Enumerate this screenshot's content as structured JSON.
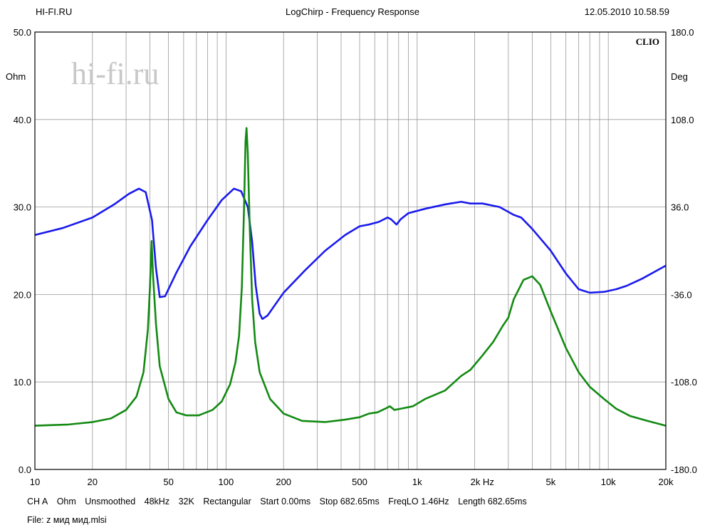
{
  "header": {
    "left": "HI-FI.RU",
    "center": "LogChirp - Frequency Response",
    "right": "12.05.2010 10.58.59"
  },
  "watermark": "hi-fi.ru",
  "brand": "CLIO",
  "left_axis": {
    "unit": "Ohm",
    "ticks": [
      "50.0",
      "40.0",
      "30.0",
      "20.0",
      "10.0",
      "0.0"
    ]
  },
  "right_axis": {
    "unit": "Deg",
    "ticks": [
      "180.0",
      "108.0",
      "36.0",
      "-36.0",
      "-108.0",
      "-180.0"
    ]
  },
  "x_axis": {
    "labels": [
      "10",
      "20",
      "50",
      "100",
      "200",
      "500",
      "1k",
      "2k Hz",
      "5k",
      "10k",
      "20k"
    ]
  },
  "params": [
    "CH A",
    "Ohm",
    "Unsmoothed",
    "48kHz",
    "32K",
    "Rectangular",
    "Start 0.00ms",
    "Stop 682.65ms",
    "FreqLO 1.46Hz",
    "Length 682.65ms"
  ],
  "file": "File: z мид мид.mlsi",
  "colors": {
    "impedance": "#1a1aee",
    "phase": "#138a13",
    "grid": "#9a9a9a"
  },
  "chart_data": {
    "type": "line",
    "title": "LogChirp - Frequency Response",
    "x_scale": "log",
    "xlim": [
      10,
      20000
    ],
    "ylim": [
      0,
      50
    ],
    "y2lim": [
      -180,
      180
    ],
    "ylabel": "Ohm",
    "y2label": "Deg",
    "grid": true,
    "series": [
      {
        "axis": "left",
        "color": "#1a1aee",
        "points": [
          [
            10,
            26.8
          ],
          [
            14,
            27.6
          ],
          [
            20,
            28.8
          ],
          [
            26,
            30.3
          ],
          [
            31,
            31.5
          ],
          [
            35,
            32.1
          ],
          [
            38,
            31.7
          ],
          [
            41,
            28.5
          ],
          [
            43,
            23
          ],
          [
            45,
            19.7
          ],
          [
            48,
            19.8
          ],
          [
            55,
            22.5
          ],
          [
            65,
            25.5
          ],
          [
            80,
            28.5
          ],
          [
            95,
            30.8
          ],
          [
            110,
            32.1
          ],
          [
            120,
            31.8
          ],
          [
            130,
            30
          ],
          [
            137,
            26
          ],
          [
            143,
            21
          ],
          [
            150,
            17.8
          ],
          [
            155,
            17.2
          ],
          [
            165,
            17.6
          ],
          [
            200,
            20.2
          ],
          [
            260,
            22.8
          ],
          [
            330,
            25
          ],
          [
            420,
            26.8
          ],
          [
            500,
            27.8
          ],
          [
            560,
            28
          ],
          [
            630,
            28.3
          ],
          [
            700,
            28.8
          ],
          [
            730,
            28.6
          ],
          [
            780,
            28
          ],
          [
            820,
            28.6
          ],
          [
            900,
            29.3
          ],
          [
            1100,
            29.8
          ],
          [
            1400,
            30.3
          ],
          [
            1700,
            30.6
          ],
          [
            1900,
            30.4
          ],
          [
            2200,
            30.4
          ],
          [
            2700,
            30
          ],
          [
            3200,
            29.1
          ],
          [
            3500,
            28.8
          ],
          [
            4000,
            27.5
          ],
          [
            5000,
            25
          ],
          [
            6000,
            22.4
          ],
          [
            7000,
            20.6
          ],
          [
            8000,
            20.2
          ],
          [
            9500,
            20.3
          ],
          [
            11000,
            20.6
          ],
          [
            12500,
            21
          ],
          [
            15000,
            21.8
          ],
          [
            20000,
            23.3
          ]
        ]
      },
      {
        "axis": "right",
        "color": "#138a13",
        "points": [
          [
            10,
            -144
          ],
          [
            15,
            -143
          ],
          [
            20,
            -141
          ],
          [
            25,
            -138
          ],
          [
            30,
            -131
          ],
          [
            34,
            -120
          ],
          [
            37,
            -100
          ],
          [
            39,
            -65
          ],
          [
            40,
            -30
          ],
          [
            40.8,
            8
          ],
          [
            41.5,
            -20
          ],
          [
            43,
            -60
          ],
          [
            45,
            -95
          ],
          [
            50,
            -122
          ],
          [
            55,
            -133
          ],
          [
            62,
            -135.5
          ],
          [
            72,
            -135.5
          ],
          [
            85,
            -131
          ],
          [
            95,
            -124
          ],
          [
            105,
            -110
          ],
          [
            112,
            -92
          ],
          [
            117,
            -70
          ],
          [
            121,
            -30
          ],
          [
            124,
            30
          ],
          [
            126.5,
            90
          ],
          [
            128,
            101
          ],
          [
            130,
            80
          ],
          [
            133,
            20
          ],
          [
            137,
            -40
          ],
          [
            142,
            -75
          ],
          [
            150,
            -100
          ],
          [
            170,
            -122
          ],
          [
            200,
            -134
          ],
          [
            250,
            -140
          ],
          [
            330,
            -141
          ],
          [
            420,
            -139
          ],
          [
            500,
            -137
          ],
          [
            560,
            -134
          ],
          [
            620,
            -133
          ],
          [
            680,
            -130
          ],
          [
            720,
            -128
          ],
          [
            760,
            -131
          ],
          [
            820,
            -130
          ],
          [
            950,
            -128
          ],
          [
            1100,
            -122
          ],
          [
            1400,
            -115
          ],
          [
            1700,
            -103
          ],
          [
            1900,
            -98
          ],
          [
            2200,
            -86
          ],
          [
            2500,
            -75
          ],
          [
            2800,
            -62
          ],
          [
            3000,
            -55
          ],
          [
            3200,
            -40
          ],
          [
            3600,
            -24
          ],
          [
            4000,
            -21
          ],
          [
            4400,
            -28
          ],
          [
            5000,
            -50
          ],
          [
            6000,
            -80
          ],
          [
            7000,
            -100
          ],
          [
            8000,
            -112
          ],
          [
            9500,
            -122
          ],
          [
            11000,
            -130
          ],
          [
            13000,
            -136
          ],
          [
            16000,
            -140
          ],
          [
            20000,
            -144
          ]
        ]
      }
    ]
  }
}
